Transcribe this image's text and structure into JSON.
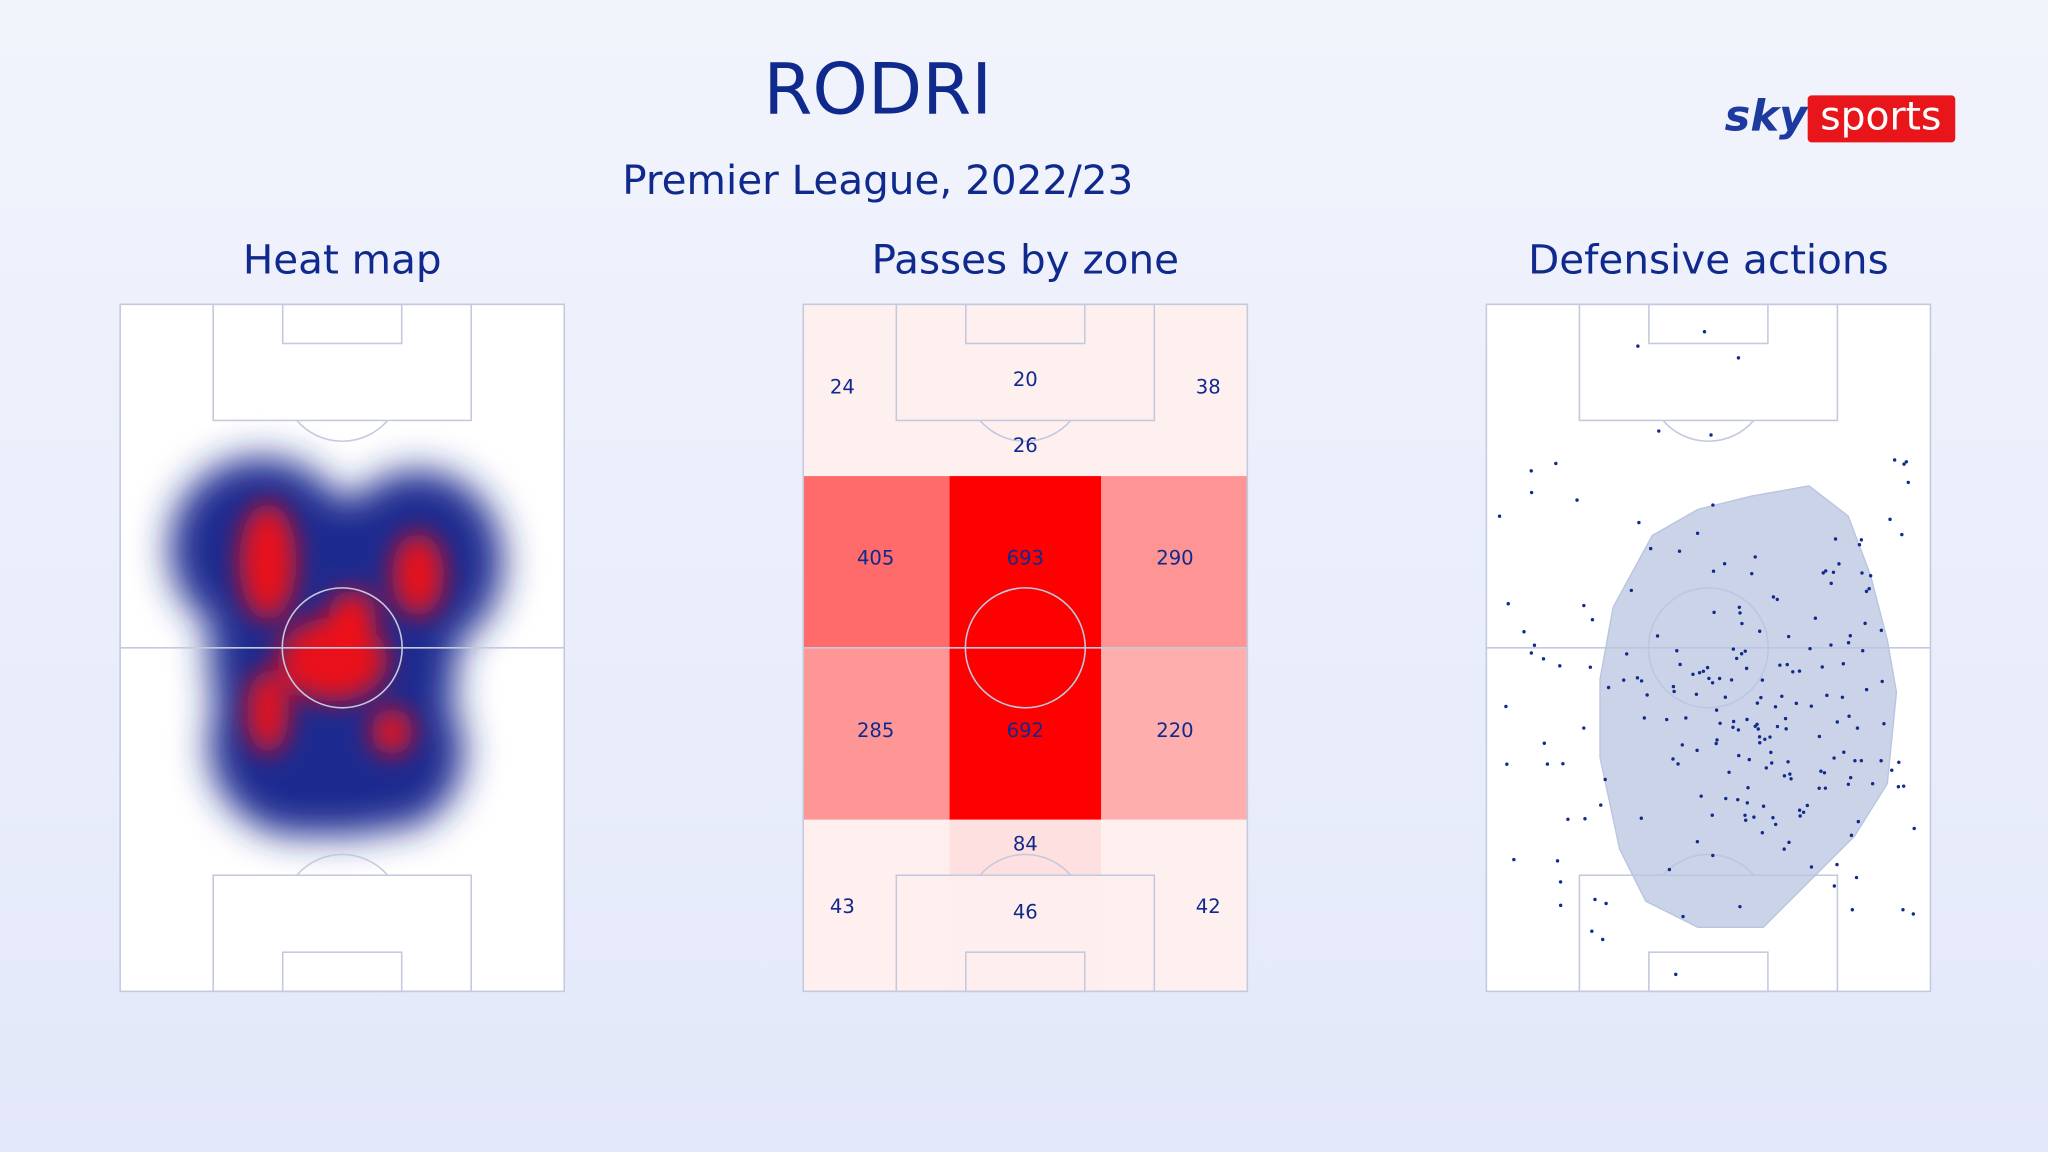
{
  "header": {
    "title": "RODRI",
    "subtitle": "Premier League, 2022/23"
  },
  "logo": {
    "left": "sky",
    "right": "sports"
  },
  "heat_map": {
    "title": "Heat map"
  },
  "passes_by_zone": {
    "title": "Passes by zone",
    "zones": [
      24,
      20,
      38,
      26,
      405,
      693,
      290,
      285,
      692,
      220,
      84,
      43,
      46,
      42
    ]
  },
  "defensive_actions": {
    "title": "Defensive actions"
  }
}
